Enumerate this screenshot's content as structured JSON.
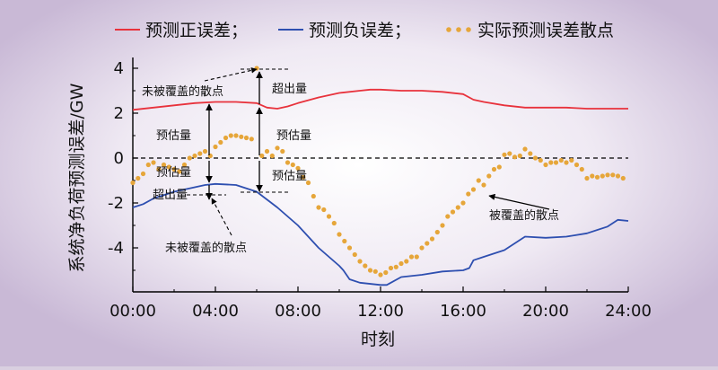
{
  "chart_data": {
    "type": "line",
    "xlabel": "时刻",
    "ylabel": "系统净负荷预测误差/GW",
    "xlim": [
      "00:00",
      "24:00"
    ],
    "ylim": [
      -6,
      4
    ],
    "x_ticks": [
      "00:00",
      "04:00",
      "08:00",
      "12:00",
      "16:00",
      "20:00",
      "24:00"
    ],
    "y_ticks": [
      "4",
      "2",
      "0",
      "-2",
      "-4"
    ],
    "series": [
      {
        "name": "预测正误差",
        "style": "line",
        "color": "#e8323c",
        "x": [
          0.0,
          1.0,
          2.0,
          3.0,
          4.0,
          5.0,
          6.0,
          6.5,
          7.0,
          7.5,
          8.0,
          9.0,
          10.0,
          11.0,
          11.5,
          12.0,
          13.0,
          14.0,
          15.0,
          16.0,
          16.5,
          17.0,
          18.0,
          19.0,
          20.0,
          21.0,
          22.0,
          23.0,
          24.0
        ],
        "y": [
          2.15,
          2.25,
          2.35,
          2.45,
          2.5,
          2.5,
          2.45,
          2.25,
          2.2,
          2.3,
          2.45,
          2.7,
          2.9,
          3.0,
          3.05,
          3.05,
          3.0,
          3.0,
          2.95,
          2.85,
          2.6,
          2.5,
          2.35,
          2.25,
          2.25,
          2.25,
          2.2,
          2.2,
          2.2
        ]
      },
      {
        "name": "预测负误差",
        "style": "line",
        "color": "#2e4fb0",
        "x": [
          0.0,
          0.5,
          1.0,
          2.0,
          3.0,
          3.5,
          4.0,
          5.0,
          6.0,
          7.0,
          8.0,
          9.0,
          10.0,
          10.2,
          10.5,
          11.0,
          12.0,
          12.3,
          12.5,
          13.0,
          14.0,
          15.0,
          16.0,
          16.3,
          16.5,
          17.0,
          18.0,
          19.0,
          20.0,
          21.0,
          22.0,
          23.0,
          23.5,
          24.0
        ],
        "y": [
          -2.2,
          -2.05,
          -1.8,
          -1.5,
          -1.3,
          -1.2,
          -1.15,
          -1.2,
          -1.5,
          -2.2,
          -3.0,
          -4.0,
          -4.8,
          -5.0,
          -5.4,
          -5.55,
          -5.65,
          -5.65,
          -5.55,
          -5.3,
          -5.2,
          -5.05,
          -5.0,
          -4.9,
          -4.55,
          -4.4,
          -4.1,
          -3.5,
          -3.55,
          -3.5,
          -3.35,
          -3.05,
          -2.75,
          -2.8
        ]
      },
      {
        "name": "实际预测误差散点",
        "style": "scatter",
        "color": "#e6a63a",
        "x": [
          0.0,
          0.25,
          0.5,
          0.75,
          1.0,
          1.25,
          1.5,
          1.75,
          2.0,
          2.25,
          2.5,
          2.75,
          3.0,
          3.25,
          3.5,
          3.75,
          4.0,
          4.25,
          4.5,
          4.75,
          5.0,
          5.25,
          5.5,
          5.75,
          6.0,
          6.25,
          6.5,
          6.75,
          7.0,
          7.25,
          7.5,
          7.75,
          8.0,
          8.25,
          8.5,
          8.75,
          9.0,
          9.25,
          9.5,
          9.75,
          10.0,
          10.25,
          10.5,
          10.75,
          11.0,
          11.25,
          11.5,
          11.75,
          12.0,
          12.25,
          12.5,
          12.75,
          13.0,
          13.25,
          13.5,
          13.75,
          14.0,
          14.25,
          14.5,
          14.75,
          15.0,
          15.25,
          15.5,
          15.75,
          16.0,
          16.25,
          16.5,
          16.75,
          17.0,
          17.25,
          17.5,
          17.75,
          18.0,
          18.25,
          18.5,
          18.75,
          19.0,
          19.25,
          19.5,
          19.75,
          20.0,
          20.25,
          20.5,
          20.75,
          21.0,
          21.25,
          21.5,
          21.75,
          22.0,
          22.25,
          22.5,
          22.75,
          23.0,
          23.25,
          23.5,
          23.75
        ],
        "y": [
          -1.1,
          -0.9,
          -0.7,
          -0.3,
          -0.2,
          -0.5,
          -0.3,
          -0.4,
          -0.5,
          -0.6,
          -0.3,
          0.0,
          0.1,
          0.2,
          0.3,
          0.1,
          0.5,
          0.7,
          0.9,
          1.0,
          1.0,
          0.95,
          0.9,
          0.85,
          4.0,
          0.1,
          0.3,
          0.1,
          0.45,
          0.3,
          -0.2,
          -0.3,
          -0.45,
          -0.85,
          -1.1,
          -1.7,
          -2.2,
          -2.3,
          -2.6,
          -2.9,
          -3.4,
          -3.7,
          -4.0,
          -4.3,
          -4.6,
          -4.8,
          -5.0,
          -5.05,
          -5.2,
          -5.1,
          -4.9,
          -4.85,
          -4.7,
          -4.6,
          -4.4,
          -4.4,
          -4.0,
          -3.8,
          -3.6,
          -3.3,
          -3.0,
          -2.6,
          -2.4,
          -2.2,
          -2.0,
          -1.6,
          -1.4,
          -1.0,
          -1.2,
          -0.8,
          -0.5,
          -0.4,
          0.15,
          0.2,
          0.05,
          0.1,
          0.4,
          0.2,
          0.0,
          -0.1,
          -0.3,
          -0.2,
          -0.2,
          -0.1,
          -0.2,
          -0.1,
          -0.3,
          -0.5,
          -0.9,
          -0.8,
          -0.85,
          -0.8,
          -0.75,
          -0.75,
          -0.8,
          -0.9
        ]
      }
    ],
    "legend": [
      {
        "label": "预测正误差；",
        "color": "#e8323c",
        "kind": "line"
      },
      {
        "label": "预测负误差；",
        "color": "#2e4fb0",
        "kind": "line"
      },
      {
        "label": "实际预测误差散点",
        "color": "#e6a63a",
        "kind": "dot"
      }
    ],
    "legend_position": "top",
    "zero_line": {
      "y": 0,
      "style": "dashed"
    },
    "annotations": {
      "uncovered_top": "未被覆盖的散点",
      "estimate_a": "预估量",
      "estimate_b": "预估量",
      "estimate_c": "预估量",
      "estimate_d": "预估量",
      "exceed_a": "超出量",
      "exceed_b": "超出量",
      "uncovered_bottom": "未被覆盖的散点",
      "covered": "被覆盖的散点"
    }
  }
}
